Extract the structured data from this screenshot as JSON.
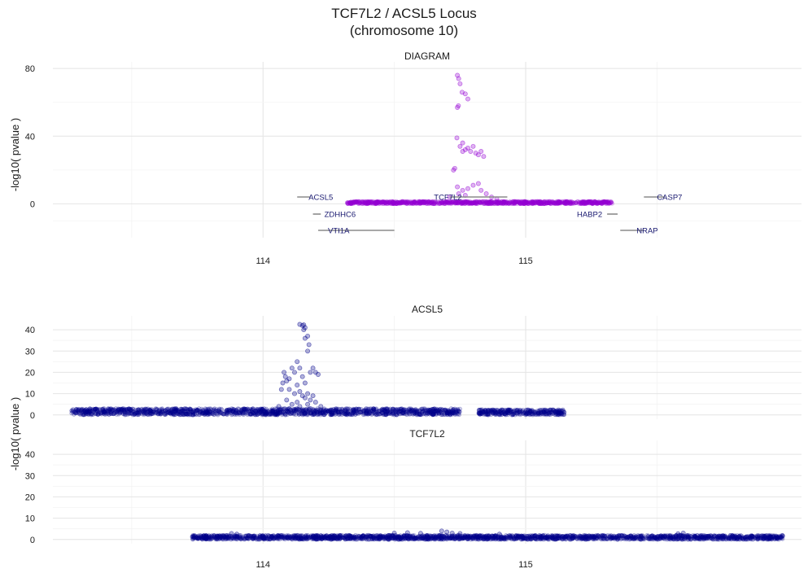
{
  "chart_data": {
    "type": "scatter",
    "title": [
      "TCF7L2 / ACSL5 Locus",
      "(chromosome 10)"
    ],
    "ylabel": "-log10( pvalue )",
    "x_range": [
      113.2,
      116.05
    ],
    "x_ticks": [
      114,
      115
    ],
    "panels": [
      {
        "name": "DIAGRAM",
        "color": "#9400D3",
        "ylim": [
          -20,
          82
        ],
        "y_ticks": [
          0,
          40,
          80
        ],
        "background": [
          [
            114.32,
            115.33,
            0,
            1.5
          ]
        ],
        "points": [
          [
            114.74,
            76
          ],
          [
            114.745,
            74
          ],
          [
            114.75,
            71
          ],
          [
            114.758,
            66
          ],
          [
            114.77,
            65
          ],
          [
            114.78,
            62
          ],
          [
            114.74,
            57
          ],
          [
            114.744,
            58
          ],
          [
            114.738,
            39
          ],
          [
            114.75,
            34
          ],
          [
            114.76,
            36
          ],
          [
            114.77,
            32
          ],
          [
            114.78,
            33
          ],
          [
            114.79,
            31
          ],
          [
            114.8,
            34
          ],
          [
            114.81,
            30
          ],
          [
            114.82,
            29
          ],
          [
            114.83,
            31
          ],
          [
            114.84,
            28
          ],
          [
            114.76,
            31
          ],
          [
            114.725,
            20
          ],
          [
            114.73,
            21
          ],
          [
            114.74,
            10
          ],
          [
            114.745,
            6
          ],
          [
            114.76,
            8
          ],
          [
            114.78,
            9
          ],
          [
            114.8,
            11
          ],
          [
            114.82,
            12
          ],
          [
            114.83,
            8
          ],
          [
            114.85,
            6
          ],
          [
            114.87,
            4
          ],
          [
            114.89,
            3
          ],
          [
            114.71,
            4
          ],
          [
            114.77,
            5
          ]
        ],
        "genes": [
          {
            "name": "ACSL5",
            "start": 114.13,
            "end": 114.18,
            "row": 1
          },
          {
            "name": "TCF7L2",
            "start": 114.71,
            "end": 114.93,
            "row": 1
          },
          {
            "name": "CASP7",
            "start": 115.45,
            "end": 115.53,
            "row": 1
          },
          {
            "name": "ZDHHC6",
            "start": 114.19,
            "end": 114.22,
            "row": 2
          },
          {
            "name": "HABP2",
            "start": 115.31,
            "end": 115.35,
            "row": 2
          },
          {
            "name": "VTI1A",
            "start": 114.21,
            "end": 114.5,
            "row": 3
          },
          {
            "name": "NRAP",
            "start": 115.36,
            "end": 115.45,
            "row": 3
          }
        ]
      },
      {
        "name": "ACSL5",
        "color": "#00008B",
        "ylim": [
          -2,
          45
        ],
        "y_ticks": [
          0,
          10,
          20,
          30,
          40
        ],
        "background": [
          [
            113.27,
            114.03,
            0,
            3
          ],
          [
            114.03,
            114.75,
            0,
            3
          ],
          [
            114.82,
            115.15,
            0,
            2.5
          ]
        ],
        "points": [
          [
            114.14,
            42.5
          ],
          [
            114.15,
            42
          ],
          [
            114.155,
            42.3
          ],
          [
            114.16,
            41
          ],
          [
            114.155,
            40
          ],
          [
            114.16,
            36
          ],
          [
            114.17,
            37
          ],
          [
            114.175,
            33
          ],
          [
            114.17,
            30
          ],
          [
            114.08,
            20
          ],
          [
            114.075,
            15
          ],
          [
            114.07,
            12
          ],
          [
            114.085,
            18
          ],
          [
            114.09,
            16
          ],
          [
            114.1,
            17
          ],
          [
            114.11,
            22
          ],
          [
            114.12,
            20
          ],
          [
            114.13,
            25
          ],
          [
            114.14,
            22
          ],
          [
            114.15,
            18
          ],
          [
            114.16,
            15
          ],
          [
            114.18,
            20
          ],
          [
            114.19,
            22
          ],
          [
            114.2,
            20
          ],
          [
            114.21,
            19
          ],
          [
            114.1,
            12
          ],
          [
            114.12,
            10
          ],
          [
            114.13,
            14
          ],
          [
            114.14,
            11
          ],
          [
            114.15,
            9
          ],
          [
            114.16,
            8
          ],
          [
            114.17,
            10
          ],
          [
            114.18,
            7
          ],
          [
            114.19,
            9
          ],
          [
            114.2,
            6
          ],
          [
            114.09,
            7
          ],
          [
            114.11,
            5
          ],
          [
            114.13,
            6
          ],
          [
            114.17,
            5
          ],
          [
            114.06,
            4
          ],
          [
            114.1,
            3
          ],
          [
            114.14,
            4
          ],
          [
            114.18,
            3
          ],
          [
            114.22,
            4
          ]
        ]
      },
      {
        "name": "TCF7L2",
        "color": "#00008B",
        "ylim": [
          -2,
          45
        ],
        "y_ticks": [
          0,
          10,
          20,
          30,
          40
        ],
        "background": [
          [
            113.73,
            115.98,
            0,
            2
          ]
        ],
        "points": [
          [
            114.68,
            4
          ],
          [
            114.7,
            3.5
          ],
          [
            114.72,
            3
          ],
          [
            114.75,
            2.8
          ],
          [
            114.5,
            3
          ],
          [
            114.55,
            3.2
          ],
          [
            113.88,
            2.8
          ],
          [
            113.9,
            2.5
          ],
          [
            115.6,
            3
          ],
          [
            115.58,
            2.7
          ],
          [
            114.6,
            2.9
          ],
          [
            114.9,
            2.5
          ]
        ]
      }
    ],
    "x_grid": true,
    "legend": "none"
  }
}
